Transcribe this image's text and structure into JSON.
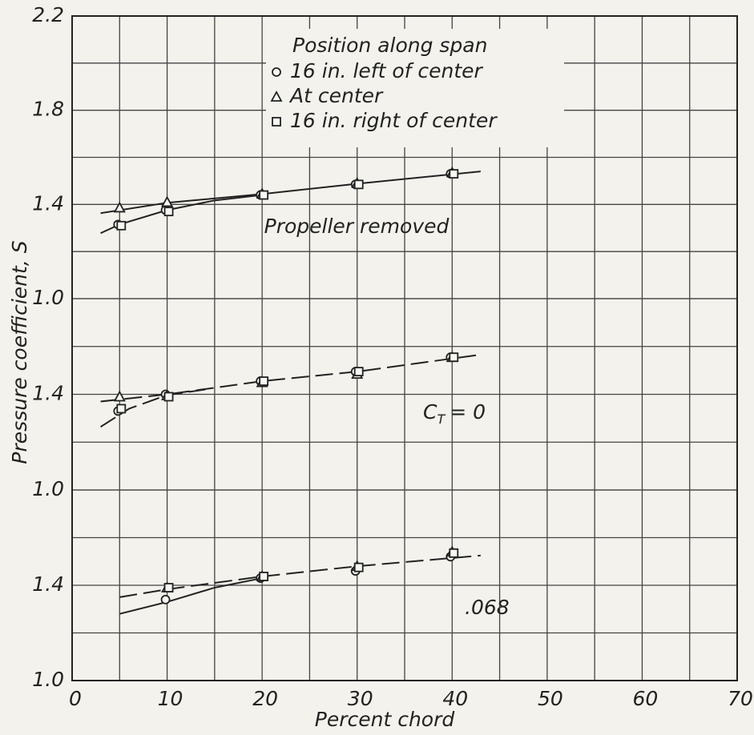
{
  "chart_data": {
    "type": "scatter",
    "xlabel": "Percent chord",
    "ylabel": "Pressure coefficient, S",
    "xlim": [
      0,
      70
    ],
    "xticks": [
      0,
      10,
      20,
      30,
      40,
      50,
      60,
      70
    ],
    "x_gridlines": [
      0,
      5,
      10,
      15,
      20,
      25,
      30,
      35,
      40,
      45,
      50,
      55,
      60,
      65,
      70
    ],
    "legend_title": "Position along span",
    "legend": "upper center",
    "x": [
      5,
      10,
      20,
      30,
      40
    ],
    "series": [
      {
        "name": "16 in. left of center",
        "marker": "circle"
      },
      {
        "name": "At center",
        "marker": "triangle"
      },
      {
        "name": "16 in. right of center",
        "marker": "square"
      }
    ],
    "panels": [
      {
        "annotation": "Propeller removed",
        "ylim": [
          1.0,
          2.2
        ],
        "yticks": [
          {
            "value": 1.0,
            "label": "1.0"
          },
          1.4,
          1.8,
          2.2
        ],
        "y_gridlines": [
          1.0,
          1.2,
          1.4,
          1.6,
          1.8,
          2.0,
          2.2
        ],
        "values": [
          [
            1.315,
            1.376,
            1.44,
            1.485,
            1.53
          ],
          [
            1.386,
            1.41,
            1.445,
            1.49,
            1.535
          ],
          [
            1.31,
            1.37,
            1.44,
            1.485,
            1.53
          ]
        ],
        "curves": [
          {
            "style": "solid",
            "x": [
              3,
              10,
              20,
              30,
              43
            ],
            "values": [
              1.363,
              1.407,
              1.444,
              1.488,
              1.54
            ]
          },
          {
            "style": "solid",
            "x": [
              3,
              5,
              10,
              15,
              20
            ],
            "values": [
              1.278,
              1.315,
              1.376,
              1.417,
              1.44
            ]
          }
        ]
      },
      {
        "annotation_parts": [
          "C",
          "T",
          "= 0"
        ],
        "ylim": [
          1.0,
          1.8
        ],
        "yticks": [
          {
            "value": 1.0,
            "label": "1.0"
          },
          1.4
        ],
        "y_gridlines": [
          1.0,
          1.2,
          1.4,
          1.6,
          1.8
        ],
        "values": [
          [
            1.33,
            1.4,
            1.455,
            1.495,
            1.555
          ],
          [
            1.39,
            1.395,
            1.45,
            1.485,
            1.555
          ],
          [
            1.34,
            1.39,
            1.455,
            1.495,
            1.555
          ]
        ],
        "curves": [
          {
            "style": "dashed",
            "x": [
              3,
              10,
              20,
              30,
              43
            ],
            "values": [
              1.37,
              1.4,
              1.455,
              1.495,
              1.566
            ]
          },
          {
            "style": "dashed",
            "x": [
              3,
              6,
              10,
              14
            ],
            "values": [
              1.264,
              1.34,
              1.397,
              1.42
            ]
          }
        ]
      },
      {
        "annotation": ".068",
        "ylim": [
          1.0,
          1.8
        ],
        "yticks": [
          {
            "value": 1.0,
            "label": "1.0"
          },
          1.4
        ],
        "y_gridlines": [
          1.0,
          1.2,
          1.4,
          1.6,
          1.8
        ],
        "values": [
          [
            null,
            1.34,
            1.43,
            1.46,
            1.52
          ],
          [
            null,
            1.39,
            1.437,
            1.48,
            1.54
          ],
          [
            null,
            1.39,
            1.437,
            1.475,
            1.535
          ]
        ],
        "curves": [
          {
            "style": "dashed",
            "x": [
              5,
              10,
              20,
              30,
              43
            ],
            "values": [
              1.35,
              1.383,
              1.437,
              1.48,
              1.525
            ]
          },
          {
            "style": "solid",
            "x": [
              5,
              10,
              15,
              20
            ],
            "values": [
              1.28,
              1.33,
              1.39,
              1.43
            ]
          }
        ]
      }
    ]
  }
}
